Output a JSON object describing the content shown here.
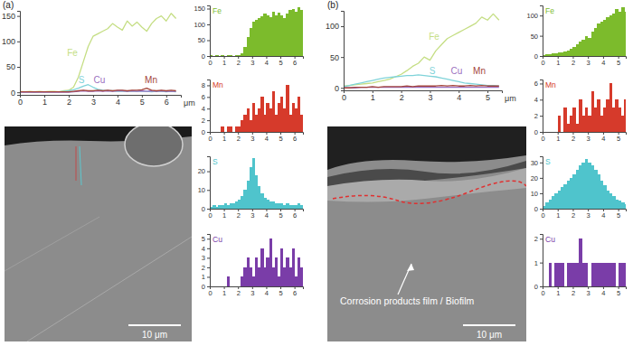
{
  "chart_data": [
    {
      "type": "line",
      "title": "(a)",
      "xlabel": "μm",
      "x": [
        0,
        0.2,
        0.4,
        0.6,
        0.8,
        1,
        1.2,
        1.4,
        1.6,
        1.8,
        2,
        2.2,
        2.4,
        2.6,
        2.8,
        3,
        3.2,
        3.4,
        3.6,
        3.8,
        4,
        4.2,
        4.4,
        4.6,
        4.8,
        5,
        5.2,
        5.4,
        5.6,
        5.8,
        6,
        6.2,
        6.4
      ],
      "series": [
        {
          "name": "Fe",
          "color": "#c5de84",
          "values": [
            2,
            1,
            2,
            1,
            2,
            1,
            2,
            2,
            1,
            3,
            4,
            10,
            30,
            60,
            90,
            110,
            115,
            120,
            125,
            135,
            128,
            122,
            140,
            130,
            138,
            128,
            120,
            135,
            145,
            150,
            140,
            155,
            145
          ]
        },
        {
          "name": "S",
          "color": "#7fd3d9",
          "values": [
            1,
            1,
            1,
            0,
            1,
            1,
            1,
            1,
            1,
            2,
            3,
            5,
            8,
            12,
            15,
            10,
            6,
            4,
            3,
            3,
            2,
            2,
            2,
            2,
            2,
            2,
            2,
            1,
            2,
            2,
            1,
            2,
            1
          ]
        },
        {
          "name": "Cu",
          "color": "#9b6fc0",
          "values": [
            0,
            0,
            0,
            0,
            0,
            0,
            0,
            0,
            0,
            0,
            0,
            1,
            2,
            3,
            2,
            2,
            3,
            2,
            3,
            2,
            3,
            3,
            2,
            3,
            2,
            3,
            2,
            3,
            2,
            3,
            2,
            2,
            2
          ]
        },
        {
          "name": "Mn",
          "color": "#a4453c",
          "values": [
            1,
            1,
            1,
            1,
            1,
            1,
            1,
            1,
            1,
            1,
            1,
            2,
            3,
            4,
            3,
            3,
            4,
            3,
            4,
            3,
            4,
            4,
            3,
            4,
            4,
            5,
            8,
            4,
            3,
            4,
            3,
            4,
            3
          ]
        }
      ],
      "xlim": [
        0,
        6.6
      ],
      "xticks": [
        0,
        1,
        2,
        3,
        4,
        5,
        6
      ],
      "ylim": [
        -5,
        160
      ],
      "yticks": [
        0,
        50,
        100,
        150
      ]
    },
    {
      "type": "bar",
      "title": "Fe",
      "color": "#7cbb2c",
      "x": [
        0,
        0.2,
        0.4,
        0.6,
        0.8,
        1,
        1.2,
        1.4,
        1.6,
        1.8,
        2,
        2.2,
        2.4,
        2.6,
        2.8,
        3,
        3.2,
        3.4,
        3.6,
        3.8,
        4,
        4.2,
        4.4,
        4.6,
        4.8,
        5,
        5.2,
        5.4,
        5.6,
        5.8,
        6,
        6.2,
        6.4
      ],
      "values": [
        2,
        1,
        2,
        1,
        2,
        1,
        2,
        2,
        1,
        3,
        4,
        10,
        30,
        60,
        90,
        110,
        115,
        120,
        125,
        135,
        128,
        122,
        140,
        130,
        138,
        128,
        120,
        135,
        145,
        150,
        140,
        155,
        145
      ],
      "xlim": [
        0,
        6.6
      ],
      "xticks": [
        0,
        1,
        2,
        3,
        4,
        5,
        6
      ],
      "ylim": [
        0,
        160
      ],
      "yticks": [
        0,
        50,
        100,
        150
      ]
    },
    {
      "type": "bar",
      "title": "Mn",
      "color": "#d63a2b",
      "x": [
        0,
        0.2,
        0.4,
        0.6,
        0.8,
        1,
        1.2,
        1.4,
        1.6,
        1.8,
        2,
        2.2,
        2.4,
        2.6,
        2.8,
        3,
        3.2,
        3.4,
        3.6,
        3.8,
        4,
        4.2,
        4.4,
        4.6,
        4.8,
        5,
        5.2,
        5.4,
        5.6,
        5.8,
        6,
        6.2,
        6.4
      ],
      "values": [
        0,
        0,
        0,
        0,
        1,
        0,
        1,
        1,
        0,
        1,
        1,
        2,
        3,
        4,
        2,
        5,
        3,
        4,
        6,
        3,
        5,
        4,
        7,
        3,
        5,
        6,
        4,
        8,
        3,
        5,
        4,
        6,
        3
      ],
      "xlim": [
        0,
        6.6
      ],
      "xticks": [
        0,
        1,
        2,
        3,
        4,
        5,
        6
      ],
      "ylim": [
        0,
        9
      ],
      "yticks": [
        0,
        2,
        4,
        6,
        8
      ]
    },
    {
      "type": "bar",
      "title": "S",
      "color": "#4fc4cc",
      "x": [
        0,
        0.2,
        0.4,
        0.6,
        0.8,
        1,
        1.2,
        1.4,
        1.6,
        1.8,
        2,
        2.2,
        2.4,
        2.6,
        2.8,
        3,
        3.2,
        3.4,
        3.6,
        3.8,
        4,
        4.2,
        4.4,
        4.6,
        4.8,
        5,
        5.2,
        5.4,
        5.6,
        5.8,
        6,
        6.2,
        6.4
      ],
      "values": [
        1,
        2,
        1,
        2,
        2,
        3,
        2,
        3,
        3,
        4,
        5,
        7,
        10,
        15,
        22,
        27,
        18,
        12,
        8,
        6,
        5,
        4,
        4,
        3,
        3,
        3,
        2,
        3,
        2,
        2,
        2,
        3,
        2
      ],
      "xlim": [
        0,
        6.6
      ],
      "xticks": [
        0,
        1,
        2,
        3,
        4,
        5,
        6
      ],
      "ylim": [
        0,
        28
      ],
      "yticks": [
        0,
        10,
        20
      ]
    },
    {
      "type": "bar",
      "title": "Cu",
      "color": "#7a3da8",
      "x": [
        0,
        0.2,
        0.4,
        0.6,
        0.8,
        1,
        1.2,
        1.4,
        1.6,
        1.8,
        2,
        2.2,
        2.4,
        2.6,
        2.8,
        3,
        3.2,
        3.4,
        3.6,
        3.8,
        4,
        4.2,
        4.4,
        4.6,
        4.8,
        5,
        5.2,
        5.4,
        5.6,
        5.8,
        6,
        6.2,
        6.4
      ],
      "values": [
        0,
        0,
        0,
        0,
        0,
        0,
        1,
        0,
        0,
        0,
        0,
        1,
        2,
        3,
        2,
        1,
        3,
        2,
        4,
        2,
        3,
        5,
        2,
        3,
        1,
        4,
        2,
        3,
        2,
        4,
        1,
        3,
        2
      ],
      "xlim": [
        0,
        6.6
      ],
      "xticks": [
        0,
        1,
        2,
        3,
        4,
        5,
        6
      ],
      "ylim": [
        0,
        5.5
      ],
      "yticks": [
        0,
        1,
        2,
        3,
        4,
        5
      ]
    },
    {
      "type": "line",
      "title": "(b)",
      "xlabel": "μm",
      "x": [
        0,
        0.2,
        0.4,
        0.6,
        0.8,
        1,
        1.2,
        1.4,
        1.6,
        1.8,
        2,
        2.2,
        2.4,
        2.6,
        2.8,
        3,
        3.2,
        3.4,
        3.6,
        3.8,
        4,
        4.2,
        4.4,
        4.6,
        4.8,
        5,
        5.2,
        5.4
      ],
      "series": [
        {
          "name": "Fe",
          "color": "#c5de84",
          "values": [
            3,
            4,
            5,
            6,
            7,
            8,
            10,
            12,
            14,
            18,
            22,
            28,
            35,
            40,
            50,
            45,
            60,
            70,
            80,
            85,
            90,
            95,
            100,
            105,
            115,
            110,
            120,
            110
          ]
        },
        {
          "name": "S",
          "color": "#7fd3d9",
          "values": [
            2,
            4,
            6,
            8,
            10,
            12,
            14,
            16,
            17,
            18,
            19,
            20,
            20,
            21,
            20,
            19,
            18,
            16,
            14,
            12,
            10,
            8,
            7,
            6,
            5,
            4,
            4,
            3
          ]
        },
        {
          "name": "Cu",
          "color": "#9b6fc0",
          "values": [
            0,
            0,
            0,
            1,
            1,
            1,
            1,
            1,
            1,
            1,
            1,
            1,
            1,
            1,
            1,
            1,
            1,
            1,
            1,
            1,
            1,
            1,
            1,
            1,
            1,
            1,
            1,
            1
          ]
        },
        {
          "name": "Mn",
          "color": "#a4453c",
          "values": [
            0,
            0,
            1,
            1,
            1,
            2,
            1,
            2,
            2,
            2,
            2,
            3,
            2,
            3,
            3,
            3,
            3,
            4,
            3,
            4,
            3,
            3,
            4,
            3,
            4,
            3,
            3,
            3
          ]
        }
      ],
      "xlim": [
        0,
        5.5
      ],
      "xticks": [
        0,
        1,
        2,
        3,
        4,
        5
      ],
      "ylim": [
        -4,
        125
      ],
      "yticks": [
        0,
        50,
        100
      ]
    },
    {
      "type": "bar",
      "title": "Fe",
      "color": "#7cbb2c",
      "x": [
        0,
        0.2,
        0.4,
        0.6,
        0.8,
        1,
        1.2,
        1.4,
        1.6,
        1.8,
        2,
        2.2,
        2.4,
        2.6,
        2.8,
        3,
        3.2,
        3.4,
        3.6,
        3.8,
        4,
        4.2,
        4.4,
        4.6,
        4.8,
        5,
        5.2,
        5.4
      ],
      "values": [
        3,
        4,
        5,
        6,
        7,
        8,
        10,
        12,
        14,
        18,
        22,
        28,
        35,
        40,
        50,
        45,
        60,
        70,
        80,
        85,
        90,
        95,
        100,
        105,
        115,
        110,
        120,
        110
      ],
      "xlim": [
        0,
        5.5
      ],
      "xticks": [
        0,
        1,
        2,
        3,
        4,
        5
      ],
      "ylim": [
        0,
        125
      ],
      "yticks": [
        0,
        50,
        100
      ]
    },
    {
      "type": "bar",
      "title": "Mn",
      "color": "#d63a2b",
      "x": [
        0,
        0.2,
        0.4,
        0.6,
        0.8,
        1,
        1.2,
        1.4,
        1.6,
        1.8,
        2,
        2.2,
        2.4,
        2.6,
        2.8,
        3,
        3.2,
        3.4,
        3.6,
        3.8,
        4,
        4.2,
        4.4,
        4.6,
        4.8,
        5,
        5.2,
        5.4
      ],
      "values": [
        0,
        0,
        0,
        0,
        0,
        2,
        0,
        3,
        1,
        2,
        3,
        1,
        4,
        2,
        3,
        2,
        5,
        3,
        4,
        2,
        3,
        4,
        6,
        3,
        4,
        3,
        2,
        4
      ],
      "xlim": [
        0,
        5.5
      ],
      "xticks": [
        0,
        1,
        2,
        3,
        4,
        5
      ],
      "ylim": [
        0,
        6.5
      ],
      "yticks": [
        0,
        2,
        4,
        6
      ]
    },
    {
      "type": "bar",
      "title": "S",
      "color": "#4fc4cc",
      "x": [
        0,
        0.2,
        0.4,
        0.6,
        0.8,
        1,
        1.2,
        1.4,
        1.6,
        1.8,
        2,
        2.2,
        2.4,
        2.6,
        2.8,
        3,
        3.2,
        3.4,
        3.6,
        3.8,
        4,
        4.2,
        4.4,
        4.6,
        4.8,
        5,
        5.2,
        5.4
      ],
      "values": [
        2,
        4,
        6,
        8,
        10,
        12,
        14,
        16,
        18,
        20,
        22,
        25,
        28,
        30,
        32,
        30,
        28,
        25,
        22,
        18,
        15,
        12,
        10,
        8,
        6,
        5,
        4,
        3
      ],
      "xlim": [
        0,
        5.5
      ],
      "xticks": [
        0,
        1,
        2,
        3,
        4,
        5
      ],
      "ylim": [
        0,
        34
      ],
      "yticks": [
        0,
        10,
        20,
        30
      ]
    },
    {
      "type": "bar",
      "title": "Cu",
      "color": "#7a3da8",
      "x": [
        0,
        0.2,
        0.4,
        0.6,
        0.8,
        1,
        1.2,
        1.4,
        1.6,
        1.8,
        2,
        2.2,
        2.4,
        2.6,
        2.8,
        3,
        3.2,
        3.4,
        3.6,
        3.8,
        4,
        4.2,
        4.4,
        4.6,
        4.8,
        5,
        5.2,
        5.4
      ],
      "values": [
        0,
        0,
        1,
        0,
        1,
        1,
        1,
        0,
        1,
        1,
        1,
        1,
        2,
        1,
        1,
        0,
        1,
        1,
        1,
        1,
        1,
        1,
        1,
        1,
        0,
        1,
        1,
        1
      ],
      "xlim": [
        0,
        5.5
      ],
      "xticks": [
        0,
        1,
        2,
        3,
        4,
        5
      ],
      "ylim": [
        0,
        2.2
      ],
      "yticks": [
        0,
        1,
        2
      ]
    }
  ],
  "images": [
    {
      "scale_bar": "10 μm"
    },
    {
      "scale_bar": "10 μm",
      "annotation": "Corrosion products film / Biofilm"
    }
  ]
}
